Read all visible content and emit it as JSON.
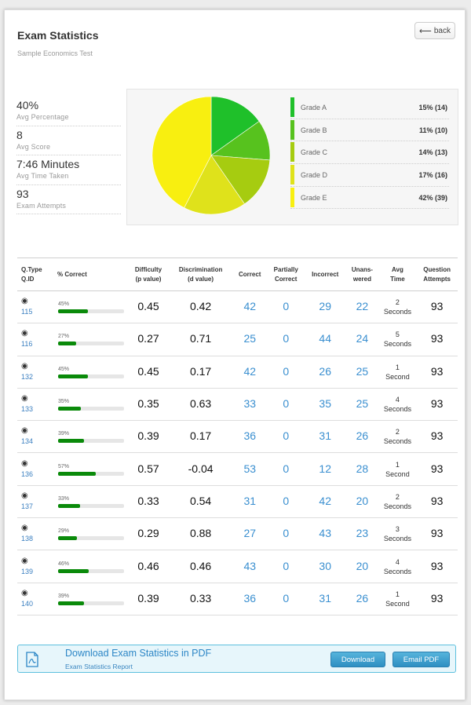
{
  "header": {
    "title": "Exam Statistics",
    "subtitle": "Sample Economics Test",
    "back_label": "back"
  },
  "stats": [
    {
      "value": "40%",
      "label": "Avg Percentage"
    },
    {
      "value": "8",
      "label": "Avg Score"
    },
    {
      "value": "7:46 Minutes",
      "label": "Avg Time Taken"
    },
    {
      "value": "93",
      "label": "Exam Attempts"
    }
  ],
  "chart_data": {
    "type": "pie",
    "title": "",
    "legend_position": "right",
    "slices": [
      {
        "label": "Grade A",
        "percent": 15,
        "count": 14,
        "display": "15% (14)",
        "color": "#1fc02a"
      },
      {
        "label": "Grade B",
        "percent": 11,
        "count": 10,
        "display": "11% (10)",
        "color": "#57c21e"
      },
      {
        "label": "Grade C",
        "percent": 14,
        "count": 13,
        "display": "14% (13)",
        "color": "#a6cc10"
      },
      {
        "label": "Grade D",
        "percent": 17,
        "count": 16,
        "display": "17% (16)",
        "color": "#dfe21b"
      },
      {
        "label": "Grade E",
        "percent": 42,
        "count": 39,
        "display": "42% (39)",
        "color": "#f8ef10"
      }
    ]
  },
  "table": {
    "headers": {
      "qtype": [
        "Q.Type",
        "Q.ID"
      ],
      "correct_pct": [
        "% Correct"
      ],
      "difficulty": [
        "Difficulty",
        "(p value)"
      ],
      "discrimination": [
        "Discrimination",
        "(d value)"
      ],
      "correct": [
        "Correct"
      ],
      "partial": [
        "Partially",
        "Correct"
      ],
      "incorrect": [
        "Incorrect"
      ],
      "unanswered": [
        "Unans-",
        "wered"
      ],
      "avg_time": [
        "Avg",
        "Time"
      ],
      "attempts": [
        "Question",
        "Attempts"
      ]
    },
    "type_icon": "radio-icon",
    "rows": [
      {
        "id": "115",
        "pct": 45,
        "pct_label": "45%",
        "p": "0.45",
        "d": "0.42",
        "correct": "42",
        "partial": "0",
        "incorrect": "29",
        "unanswered": "22",
        "time_value": "2",
        "time_unit": "Seconds",
        "attempts": "93"
      },
      {
        "id": "116",
        "pct": 27,
        "pct_label": "27%",
        "p": "0.27",
        "d": "0.71",
        "correct": "25",
        "partial": "0",
        "incorrect": "44",
        "unanswered": "24",
        "time_value": "5",
        "time_unit": "Seconds",
        "attempts": "93"
      },
      {
        "id": "132",
        "pct": 45,
        "pct_label": "45%",
        "p": "0.45",
        "d": "0.17",
        "correct": "42",
        "partial": "0",
        "incorrect": "26",
        "unanswered": "25",
        "time_value": "1",
        "time_unit": "Second",
        "attempts": "93"
      },
      {
        "id": "133",
        "pct": 35,
        "pct_label": "35%",
        "p": "0.35",
        "d": "0.63",
        "correct": "33",
        "partial": "0",
        "incorrect": "35",
        "unanswered": "25",
        "time_value": "4",
        "time_unit": "Seconds",
        "attempts": "93"
      },
      {
        "id": "134",
        "pct": 39,
        "pct_label": "39%",
        "p": "0.39",
        "d": "0.17",
        "correct": "36",
        "partial": "0",
        "incorrect": "31",
        "unanswered": "26",
        "time_value": "2",
        "time_unit": "Seconds",
        "attempts": "93"
      },
      {
        "id": "136",
        "pct": 57,
        "pct_label": "57%",
        "p": "0.57",
        "d": "-0.04",
        "correct": "53",
        "partial": "0",
        "incorrect": "12",
        "unanswered": "28",
        "time_value": "1",
        "time_unit": "Second",
        "attempts": "93"
      },
      {
        "id": "137",
        "pct": 33,
        "pct_label": "33%",
        "p": "0.33",
        "d": "0.54",
        "correct": "31",
        "partial": "0",
        "incorrect": "42",
        "unanswered": "20",
        "time_value": "2",
        "time_unit": "Seconds",
        "attempts": "93"
      },
      {
        "id": "138",
        "pct": 29,
        "pct_label": "29%",
        "p": "0.29",
        "d": "0.88",
        "correct": "27",
        "partial": "0",
        "incorrect": "43",
        "unanswered": "23",
        "time_value": "3",
        "time_unit": "Seconds",
        "attempts": "93"
      },
      {
        "id": "139",
        "pct": 46,
        "pct_label": "46%",
        "p": "0.46",
        "d": "0.46",
        "correct": "43",
        "partial": "0",
        "incorrect": "30",
        "unanswered": "20",
        "time_value": "4",
        "time_unit": "Seconds",
        "attempts": "93"
      },
      {
        "id": "140",
        "pct": 39,
        "pct_label": "39%",
        "p": "0.39",
        "d": "0.33",
        "correct": "36",
        "partial": "0",
        "incorrect": "31",
        "unanswered": "26",
        "time_value": "1",
        "time_unit": "Second",
        "attempts": "93"
      }
    ]
  },
  "download": {
    "icon": "pdf-file-icon",
    "title": "Download Exam Statistics in PDF",
    "subtitle": "Exam Statistics Report",
    "download_label": "Download",
    "email_label": "Email PDF"
  }
}
